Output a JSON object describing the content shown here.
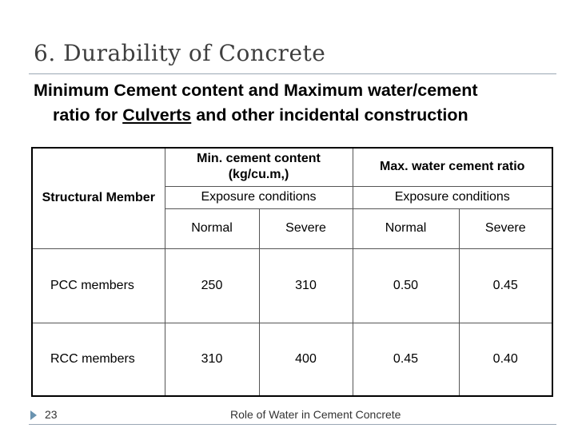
{
  "slide": {
    "title": "6. Durability of Concrete",
    "subtitle_line1": "Minimum Cement content and Maximum water/cement",
    "subtitle_line2_pre": "ratio for ",
    "subtitle_line2_underlined": "Culverts",
    "subtitle_line2_post": " and other incidental construction"
  },
  "table": {
    "structural_member_header": "Structural Member",
    "min_cement_header": "Min. cement content (kg/cu.m,)",
    "max_wc_header": "Max. water cement ratio",
    "exposure_label_1": "Exposure conditions",
    "exposure_label_2": "Exposure conditions",
    "sub_headers": [
      "Normal",
      "Severe",
      "Normal",
      "Severe"
    ],
    "rows": [
      {
        "member": "PCC members",
        "values": [
          "250",
          "310",
          "0.50",
          "0.45"
        ]
      },
      {
        "member": "RCC members",
        "values": [
          "310",
          "400",
          "0.45",
          "0.40"
        ]
      }
    ]
  },
  "footer": {
    "slide_number": "23",
    "text": "Role of Water in Cement Concrete"
  }
}
